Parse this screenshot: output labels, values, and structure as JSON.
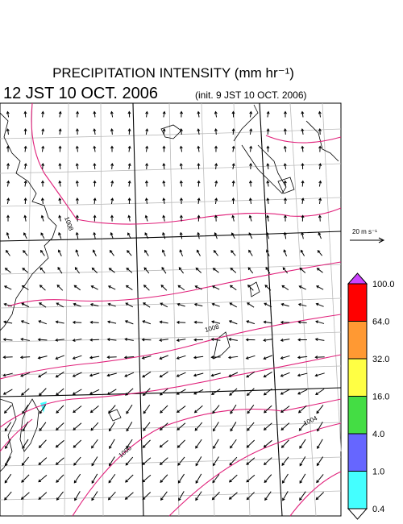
{
  "header": {
    "title": "PRECIPITATION INTENSITY (mm hr⁻¹)",
    "time": "12 JST 10 OCT. 2006",
    "init": "(init. 9 JST 10 OCT. 2006)"
  },
  "wind_scale": "20 m s⁻¹",
  "contour_labels": [
    "1008",
    "1008",
    "1004",
    "1000"
  ],
  "colorbar": {
    "levels": [
      {
        "value": 100,
        "label": "100.0"
      },
      {
        "value": 64,
        "label": "64.0"
      },
      {
        "value": 32,
        "label": "32.0"
      },
      {
        "value": 16,
        "label": "16.0"
      },
      {
        "value": 4,
        "label": "4.0"
      },
      {
        "value": 1,
        "label": "1.0"
      },
      {
        "value": 0.4,
        "label": "0.4"
      }
    ],
    "colors": [
      "#ff0000",
      "#ff9933",
      "#ffff44",
      "#44dd44",
      "#6666ff",
      "#44ffff"
    ],
    "over_color": "#cc44ff",
    "under_color": "#ffffff"
  }
}
